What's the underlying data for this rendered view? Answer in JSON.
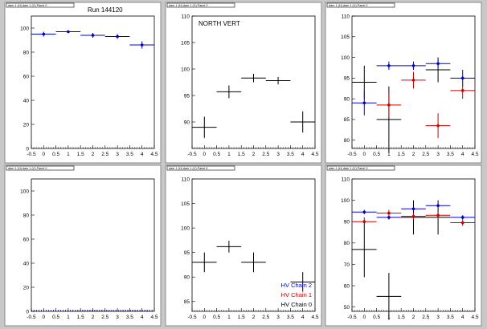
{
  "run_label": "Run 144120",
  "chart_data": [
    {
      "type": "scatter",
      "header": "dam 1 (H) dam 1 (V) Panel 0",
      "title": "",
      "xlim": [
        -0.5,
        4.5
      ],
      "ylim": [
        0,
        110
      ],
      "xticks": [
        -0.5,
        0,
        0.5,
        1,
        1.5,
        2,
        2.5,
        3,
        3.5,
        4,
        4.5
      ],
      "yticks": [
        0,
        20,
        40,
        60,
        80,
        100
      ],
      "series": [
        {
          "color": "#0000cc",
          "marker": true,
          "points": [
            {
              "x": 0,
              "y": 95,
              "ey": 2
            },
            {
              "x": 1,
              "y": 97,
              "ey": 1
            },
            {
              "x": 2,
              "y": 94,
              "ey": 2
            },
            {
              "x": 3,
              "y": 93,
              "ey": 2
            },
            {
              "x": 4,
              "y": 86,
              "ey": 3
            }
          ]
        }
      ]
    },
    {
      "type": "scatter",
      "header": "dam 1 (H) dam 1 (V) Panel 0",
      "title": "NORTH VERT",
      "xlim": [
        -0.5,
        4.5
      ],
      "ylim": [
        85,
        110
      ],
      "xticks": [
        -0.5,
        0,
        0.5,
        1,
        1.5,
        2,
        2.5,
        3,
        3.5,
        4,
        4.5
      ],
      "yticks": [
        90,
        95,
        100,
        105,
        110
      ],
      "series": [
        {
          "color": "#000000",
          "marker": false,
          "points": [
            {
              "x": 0,
              "y": 89,
              "ey": 2
            },
            {
              "x": 1,
              "y": 95.7,
              "ey": 1.2
            },
            {
              "x": 2,
              "y": 98.3,
              "ey": 0.8
            },
            {
              "x": 3,
              "y": 97.8,
              "ey": 0.7
            },
            {
              "x": 4,
              "y": 90,
              "ey": 2
            }
          ]
        }
      ]
    },
    {
      "type": "scatter",
      "header": "dam 1 (H) dam 1 (V) Panel 2",
      "title": "",
      "xlim": [
        -0.5,
        4.5
      ],
      "ylim": [
        78,
        110
      ],
      "xticks": [
        -0.5,
        0,
        0.5,
        1,
        1.5,
        2,
        2.5,
        3,
        3.5,
        4,
        4.5
      ],
      "yticks": [
        80,
        85,
        90,
        95,
        100,
        105,
        110
      ],
      "series": [
        {
          "color": "#000000",
          "marker": false,
          "points": [
            {
              "x": 0,
              "y": 94,
              "ey": 4
            },
            {
              "x": 1,
              "y": 85,
              "ey": 8
            },
            {
              "x": 3,
              "y": 97,
              "ey": 3
            }
          ]
        },
        {
          "color": "#0000cc",
          "marker": true,
          "points": [
            {
              "x": 0,
              "y": 89,
              "ey": 3
            },
            {
              "x": 1,
              "y": 98,
              "ey": 1
            },
            {
              "x": 2,
              "y": 98,
              "ey": 1
            },
            {
              "x": 3,
              "y": 98.5,
              "ey": 1
            },
            {
              "x": 4,
              "y": 95,
              "ey": 2
            }
          ]
        },
        {
          "color": "#cc0000",
          "marker": true,
          "points": [
            {
              "x": 1,
              "y": 88.5,
              "ey": 3
            },
            {
              "x": 2,
              "y": 94.5,
              "ey": 2
            },
            {
              "x": 3,
              "y": 83.5,
              "ey": 3
            },
            {
              "x": 4,
              "y": 92,
              "ey": 2
            }
          ]
        }
      ]
    },
    {
      "type": "scatter",
      "header": "dam 1 (H) dam 1 (V) Panel 0",
      "title": "",
      "xlim": [
        -0.5,
        4.5
      ],
      "ylim": [
        0,
        110
      ],
      "xticks": [
        -0.5,
        0,
        0.5,
        1,
        1.5,
        2,
        2.5,
        3,
        3.5,
        4,
        4.5
      ],
      "yticks": [
        0,
        20,
        40,
        60,
        80,
        100
      ],
      "series": [
        {
          "color": "#0000cc",
          "marker": false,
          "dotted": true,
          "points": []
        }
      ]
    },
    {
      "type": "scatter",
      "header": "dam 1 (H) dam 1 (V) Panel 4",
      "title": "",
      "xlim": [
        -0.5,
        4.5
      ],
      "ylim": [
        83,
        110
      ],
      "xticks": [
        -0.5,
        0,
        0.5,
        1,
        1.5,
        2,
        2.5,
        3,
        3.5,
        4,
        4.5
      ],
      "yticks": [
        85,
        90,
        95,
        100,
        105,
        110
      ],
      "legend": {
        "placement": "bottom-right",
        "entries": [
          {
            "label": "HV Chain 2",
            "color": "#0000cc"
          },
          {
            "label": "HV Chain 1",
            "color": "#cc0000"
          },
          {
            "label": "HV Chain 0",
            "color": "#000000"
          }
        ]
      },
      "series": [
        {
          "color": "#000000",
          "marker": false,
          "points": [
            {
              "x": 0,
              "y": 93,
              "ey": 2
            },
            {
              "x": 1,
              "y": 96.2,
              "ey": 1.2
            },
            {
              "x": 2,
              "y": 93,
              "ey": 2
            },
            {
              "x": 4,
              "y": 89,
              "ey": 2
            }
          ]
        }
      ]
    },
    {
      "type": "scatter",
      "header": "dam 1 (H) dam 1 (V) Panel 3",
      "title": "",
      "xlim": [
        -0.5,
        4.5
      ],
      "ylim": [
        48,
        110
      ],
      "xticks": [
        -0.5,
        0,
        0.5,
        1,
        1.5,
        2,
        2.5,
        3,
        3.5,
        4,
        4.5
      ],
      "yticks": [
        50,
        60,
        70,
        80,
        90,
        100,
        110
      ],
      "series": [
        {
          "color": "#000000",
          "marker": false,
          "points": [
            {
              "x": 0,
              "y": 77,
              "ey": 13
            },
            {
              "x": 1,
              "y": 55,
              "ey": 11
            },
            {
              "x": 2,
              "y": 92,
              "ey": 8
            },
            {
              "x": 3,
              "y": 92,
              "ey": 8
            }
          ]
        },
        {
          "color": "#0000cc",
          "marker": true,
          "points": [
            {
              "x": 0,
              "y": 94.5,
              "ey": 1
            },
            {
              "x": 1,
              "y": 92,
              "ey": 1
            },
            {
              "x": 2,
              "y": 96,
              "ey": 1
            },
            {
              "x": 3,
              "y": 97.5,
              "ey": 1
            },
            {
              "x": 4,
              "y": 92,
              "ey": 1
            }
          ]
        },
        {
          "color": "#cc0000",
          "marker": true,
          "points": [
            {
              "x": 0,
              "y": 90,
              "ey": 2
            },
            {
              "x": 1,
              "y": 94,
              "ey": 1.5
            },
            {
              "x": 2,
              "y": 92.5,
              "ey": 1.5
            },
            {
              "x": 3,
              "y": 93,
              "ey": 1.5
            },
            {
              "x": 4,
              "y": 89.5,
              "ey": 1.5
            }
          ]
        }
      ]
    }
  ]
}
